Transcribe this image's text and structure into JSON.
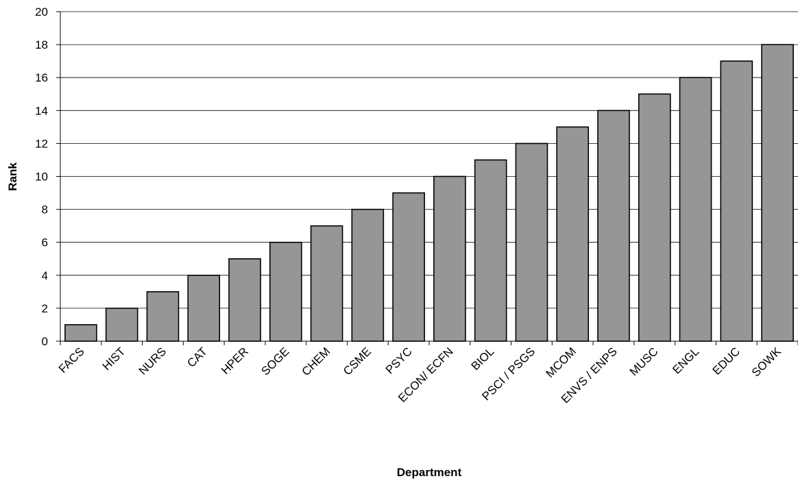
{
  "chart_data": {
    "type": "bar",
    "categories": [
      "FACS",
      "HIST",
      "NURS",
      "CAT",
      "HPER",
      "SOGE",
      "CHEM",
      "CSME",
      "PSYC",
      "ECON/ ECFN",
      "BIOL",
      "PSCI / PSGS",
      "MCOM",
      "ENVS / ENPS",
      "MUSC",
      "ENGL",
      "EDUC",
      "SOWK"
    ],
    "values": [
      1,
      2,
      3,
      4,
      5,
      6,
      7,
      8,
      9,
      10,
      11,
      12,
      13,
      14,
      15,
      16,
      17,
      18
    ],
    "xlabel": "Department",
    "ylabel": "Rank",
    "ylim": [
      0,
      20
    ],
    "yticks": [
      "0",
      "2",
      "4",
      "6",
      "8",
      "10",
      "12",
      "14",
      "16",
      "18",
      "20"
    ],
    "grid": true,
    "legend": "none",
    "colors": {
      "bar": "#969696",
      "outline": "#000000",
      "grid": "#000000"
    }
  }
}
